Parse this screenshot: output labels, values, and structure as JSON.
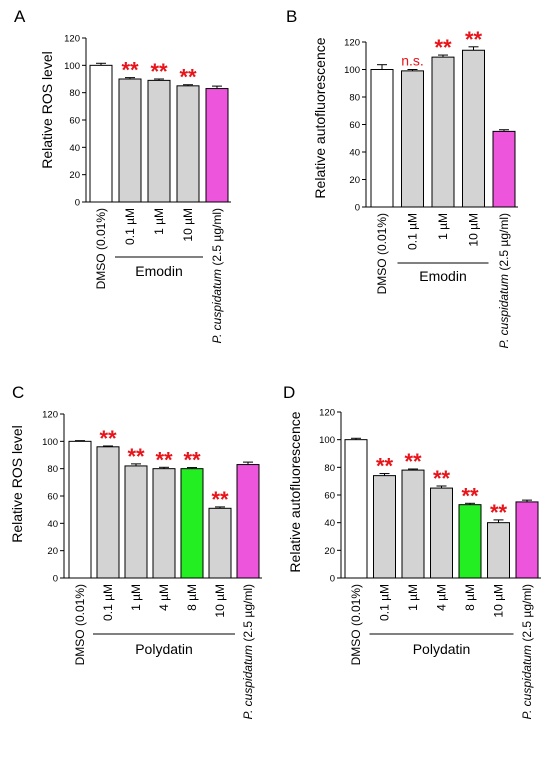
{
  "chart_data": [
    {
      "panel": "A",
      "type": "bar",
      "ylabel": "Relative ROS level",
      "ylim": [
        0,
        120
      ],
      "yticks": [
        0,
        20,
        40,
        60,
        80,
        100,
        120
      ],
      "group_label": "Emodin",
      "categories": [
        "DMSO (0.01%)",
        "0.1 µM",
        "1 µM",
        "10 µM",
        "P. cuspidatum (2.5 µg/ml)"
      ],
      "values": [
        100,
        90,
        89,
        85,
        83
      ],
      "errors": [
        1.5,
        1,
        1,
        0.8,
        1.8
      ],
      "colors": [
        "#ffffff",
        "#d3d3d3",
        "#d3d3d3",
        "#d3d3d3",
        "#ee55dd"
      ],
      "significance": [
        "",
        "**",
        "**",
        "**",
        ""
      ]
    },
    {
      "panel": "B",
      "type": "bar",
      "ylabel": "Relative autofluorescence",
      "ylim": [
        0,
        120
      ],
      "yticks": [
        0,
        20,
        40,
        60,
        80,
        100,
        120
      ],
      "group_label": "Emodin",
      "categories": [
        "DMSO (0.01%)",
        "0.1 µM",
        "1 µM",
        "10 µM",
        "P. cuspidatum (2.5 µg/ml)"
      ],
      "values": [
        100,
        99,
        109,
        114,
        55
      ],
      "errors": [
        3.5,
        1,
        1.5,
        2.5,
        1.2
      ],
      "colors": [
        "#ffffff",
        "#d3d3d3",
        "#d3d3d3",
        "#d3d3d3",
        "#ee55dd"
      ],
      "significance": [
        "",
        "n.s.",
        "**",
        "**",
        ""
      ]
    },
    {
      "panel": "C",
      "type": "bar",
      "ylabel": "Relative ROS level",
      "ylim": [
        0,
        120
      ],
      "yticks": [
        0,
        20,
        40,
        60,
        80,
        100,
        120
      ],
      "group_label": "Polydatin",
      "categories": [
        "DMSO (0.01%)",
        "0.1 µM",
        "1 µM",
        "4 µM",
        "8 µM",
        "10 µM",
        "P. cuspidatum (2.5 µg/ml)"
      ],
      "values": [
        100,
        96,
        82,
        80,
        80,
        51,
        83
      ],
      "errors": [
        0.5,
        0.6,
        1.5,
        1,
        0.8,
        1,
        1.8
      ],
      "colors": [
        "#ffffff",
        "#d3d3d3",
        "#d3d3d3",
        "#d3d3d3",
        "#22ee22",
        "#d3d3d3",
        "#ee55dd"
      ],
      "significance": [
        "",
        "**",
        "**",
        "**",
        "**",
        "**",
        ""
      ]
    },
    {
      "panel": "D",
      "type": "bar",
      "ylabel": "Relative autofluorescence",
      "ylim": [
        0,
        120
      ],
      "yticks": [
        0,
        20,
        40,
        60,
        80,
        100,
        120
      ],
      "group_label": "Polydatin",
      "categories": [
        "DMSO (0.01%)",
        "0.1 µM",
        "1 µM",
        "4 µM",
        "8 µM",
        "10 µM",
        "P. cuspidatum (2.5 µg/ml)"
      ],
      "values": [
        100,
        74,
        78,
        65,
        53,
        40,
        55
      ],
      "errors": [
        1,
        1.5,
        0.8,
        1.5,
        1,
        2,
        1.3
      ],
      "colors": [
        "#ffffff",
        "#d3d3d3",
        "#d3d3d3",
        "#d3d3d3",
        "#22ee22",
        "#d3d3d3",
        "#ee55dd"
      ],
      "significance": [
        "",
        "**",
        "**",
        "**",
        "**",
        "**",
        ""
      ]
    }
  ]
}
